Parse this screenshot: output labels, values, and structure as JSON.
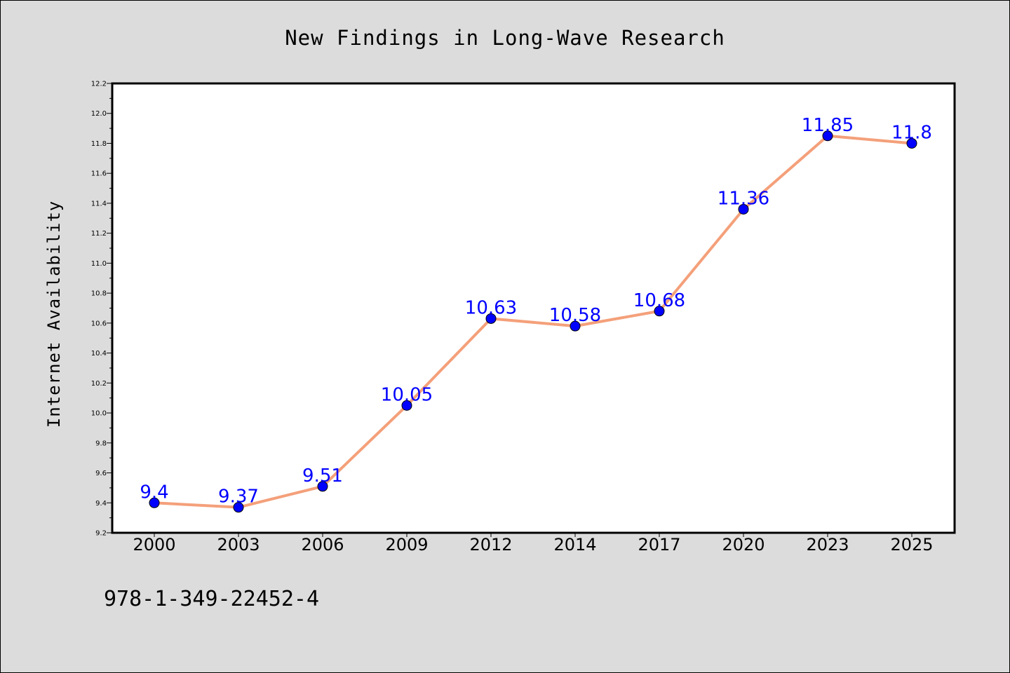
{
  "chart_data": {
    "type": "line",
    "title": "New Findings in Long-Wave Research",
    "xlabel": "",
    "ylabel": "Internet Availability",
    "categories": [
      "2000",
      "2003",
      "2006",
      "2009",
      "2012",
      "2014",
      "2017",
      "2020",
      "2023",
      "2025"
    ],
    "series": [
      {
        "values": [
          9.4,
          9.37,
          9.51,
          10.05,
          10.63,
          10.58,
          10.68,
          11.36,
          11.85,
          11.8
        ],
        "data_labels": [
          "9.4",
          "9.37",
          "9.51",
          "10.05",
          "10.63",
          "10.58",
          "10.68",
          "11.36",
          "11.85",
          "11.8"
        ],
        "line_color": "#f4a07a",
        "marker_color": "#0000ff"
      }
    ],
    "ylim": [
      9.2,
      12.2
    ],
    "yticks": [
      "9.2",
      "9.4",
      "9.6",
      "9.8",
      "10.0",
      "10.2",
      "10.4",
      "10.6",
      "10.8",
      "11.0",
      "11.2",
      "11.4",
      "11.6",
      "11.8",
      "12.0",
      "12.2"
    ],
    "grid": false,
    "legend": "none"
  },
  "footnote": "978-1-349-22452-4",
  "colors": {
    "background": "#dcdcdc",
    "plot_background": "#ffffff",
    "line": "#f4a07a",
    "marker": "#0000ff",
    "data_label": "#0000ff"
  }
}
